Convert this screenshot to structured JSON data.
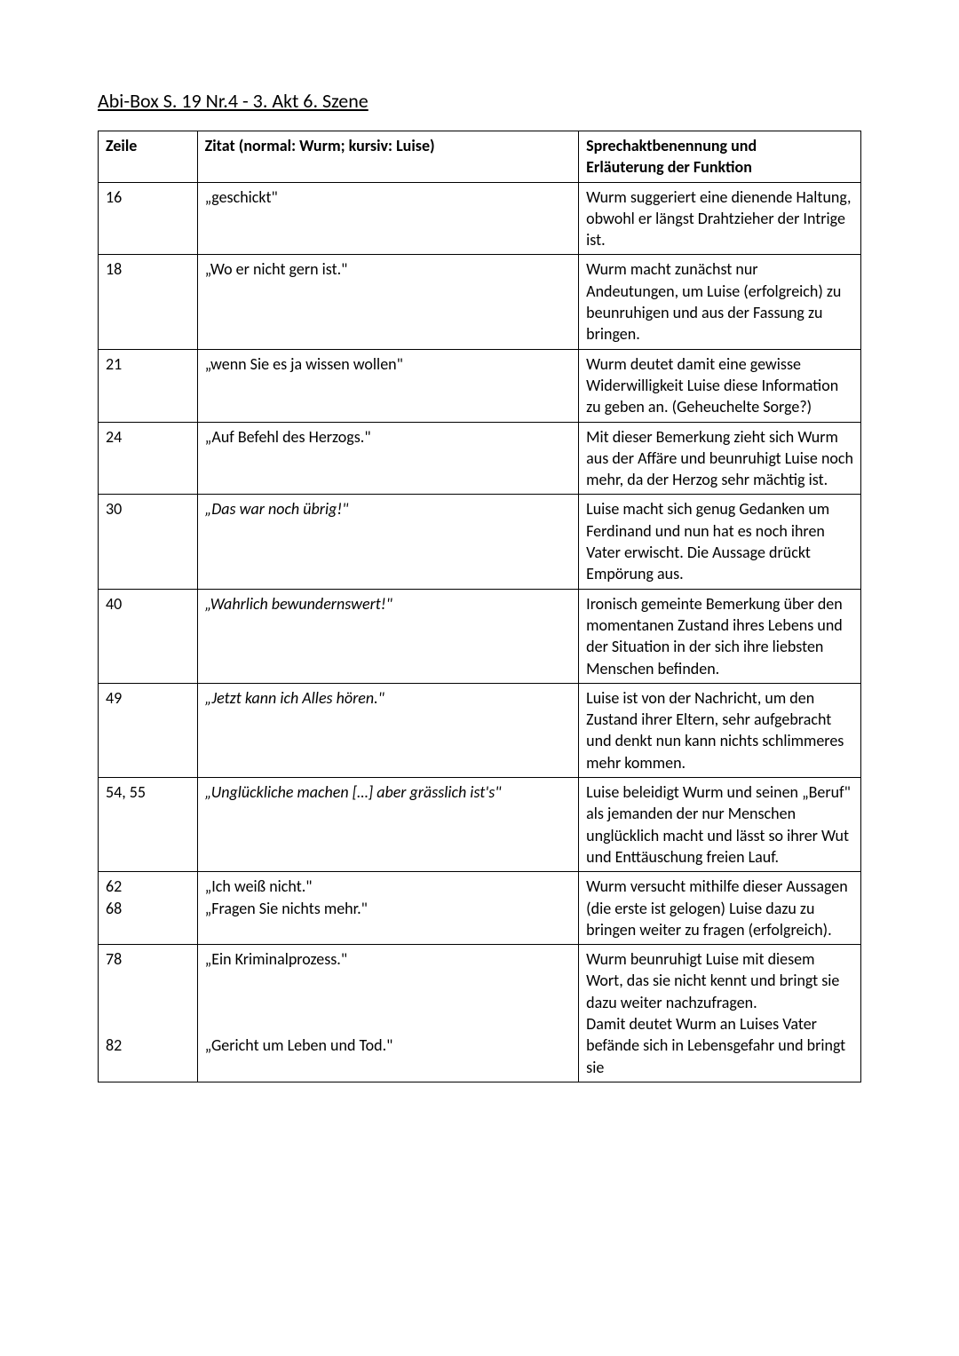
{
  "title": "Abi-Box S. 19 Nr.4 - 3. Akt 6. Szene",
  "headers": {
    "zeile": "Zeile",
    "zitat": "Zitat (normal: Wurm; kursiv: Luise)",
    "funktion_l1": "Sprechaktbenennung und",
    "funktion_l2": "Erläuterung der Funktion"
  },
  "rows": [
    {
      "zeile": "16",
      "zitat": "„geschickt\"",
      "italic": false,
      "funktion": "Wurm suggeriert eine dienende Haltung, obwohl er längst Drahtzieher der Intrige ist."
    },
    {
      "zeile": "18",
      "zitat": "„Wo er nicht gern ist.\"",
      "italic": false,
      "funktion": "Wurm macht zunächst nur Andeutungen, um Luise (erfolgreich) zu beunruhigen und aus der Fassung zu bringen."
    },
    {
      "zeile": "21",
      "zitat": "„wenn Sie es ja wissen wollen\"",
      "italic": false,
      "funktion": "Wurm deutet damit eine gewisse Widerwilligkeit Luise diese Information zu geben an. (Geheuchelte Sorge?)"
    },
    {
      "zeile": "24",
      "zitat": "„Auf Befehl des Herzogs.\"",
      "italic": false,
      "funktion": "Mit dieser Bemerkung zieht sich Wurm aus der Affäre und beunruhigt Luise noch mehr, da der Herzog sehr mächtig ist."
    },
    {
      "zeile": "30",
      "zitat": "„Das war noch übrig!\"",
      "italic": true,
      "funktion": "Luise macht sich genug Gedanken um Ferdinand und nun hat es noch ihren Vater erwischt. Die Aussage drückt Empörung aus."
    },
    {
      "zeile": "40",
      "zitat": "„Wahrlich bewundernswert!\"",
      "italic": true,
      "funktion": "Ironisch gemeinte Bemerkung über den momentanen Zustand ihres Lebens und der Situation in der sich ihre liebsten Menschen befinden."
    },
    {
      "zeile": "49",
      "zitat": "„Jetzt kann ich Alles hören.\"",
      "italic": true,
      "funktion": "Luise ist von der Nachricht, um den Zustand ihrer Eltern, sehr aufgebracht und denkt nun kann nichts schlimmeres mehr kommen."
    },
    {
      "zeile": "54, 55",
      "zitat": "„Unglückliche machen […] aber grässlich ist's\"",
      "italic": true,
      "funktion": "Luise beleidigt Wurm und seinen „Beruf\" als jemanden der nur Menschen unglücklich macht und lässt so ihrer Wut und Enttäuschung freien Lauf."
    },
    {
      "zeile_l1": "62",
      "zeile_l2": "68",
      "zitat_l1": "„Ich weiß nicht.\"",
      "zitat_l2": "„Fragen Sie nichts mehr.\"",
      "italic": false,
      "multi": true,
      "funktion": "Wurm versucht mithilfe dieser Aussagen (die erste ist gelogen) Luise dazu zu bringen weiter zu fragen (erfolgreich)."
    },
    {
      "zeile_l1": "78",
      "zeile_l2_blank": "",
      "zeile_l3_blank": "",
      "zeile_l4_blank": "",
      "zeile_l5": "82",
      "zitat_l1": "„Ein Kriminalprozess.\"",
      "zitat_l2_blank": "",
      "zitat_l3_blank": "",
      "zitat_l4_blank": "",
      "zitat_l5": "„Gericht um Leben und Tod.\"",
      "italic": false,
      "multi2": true,
      "funktion_l1": "Wurm beunruhigt Luise mit diesem Wort, das sie nicht kennt und bringt sie dazu weiter nachzufragen.",
      "funktion_l2": "Damit deutet Wurm an Luises Vater befände sich in Lebensgefahr und bringt sie"
    }
  ]
}
